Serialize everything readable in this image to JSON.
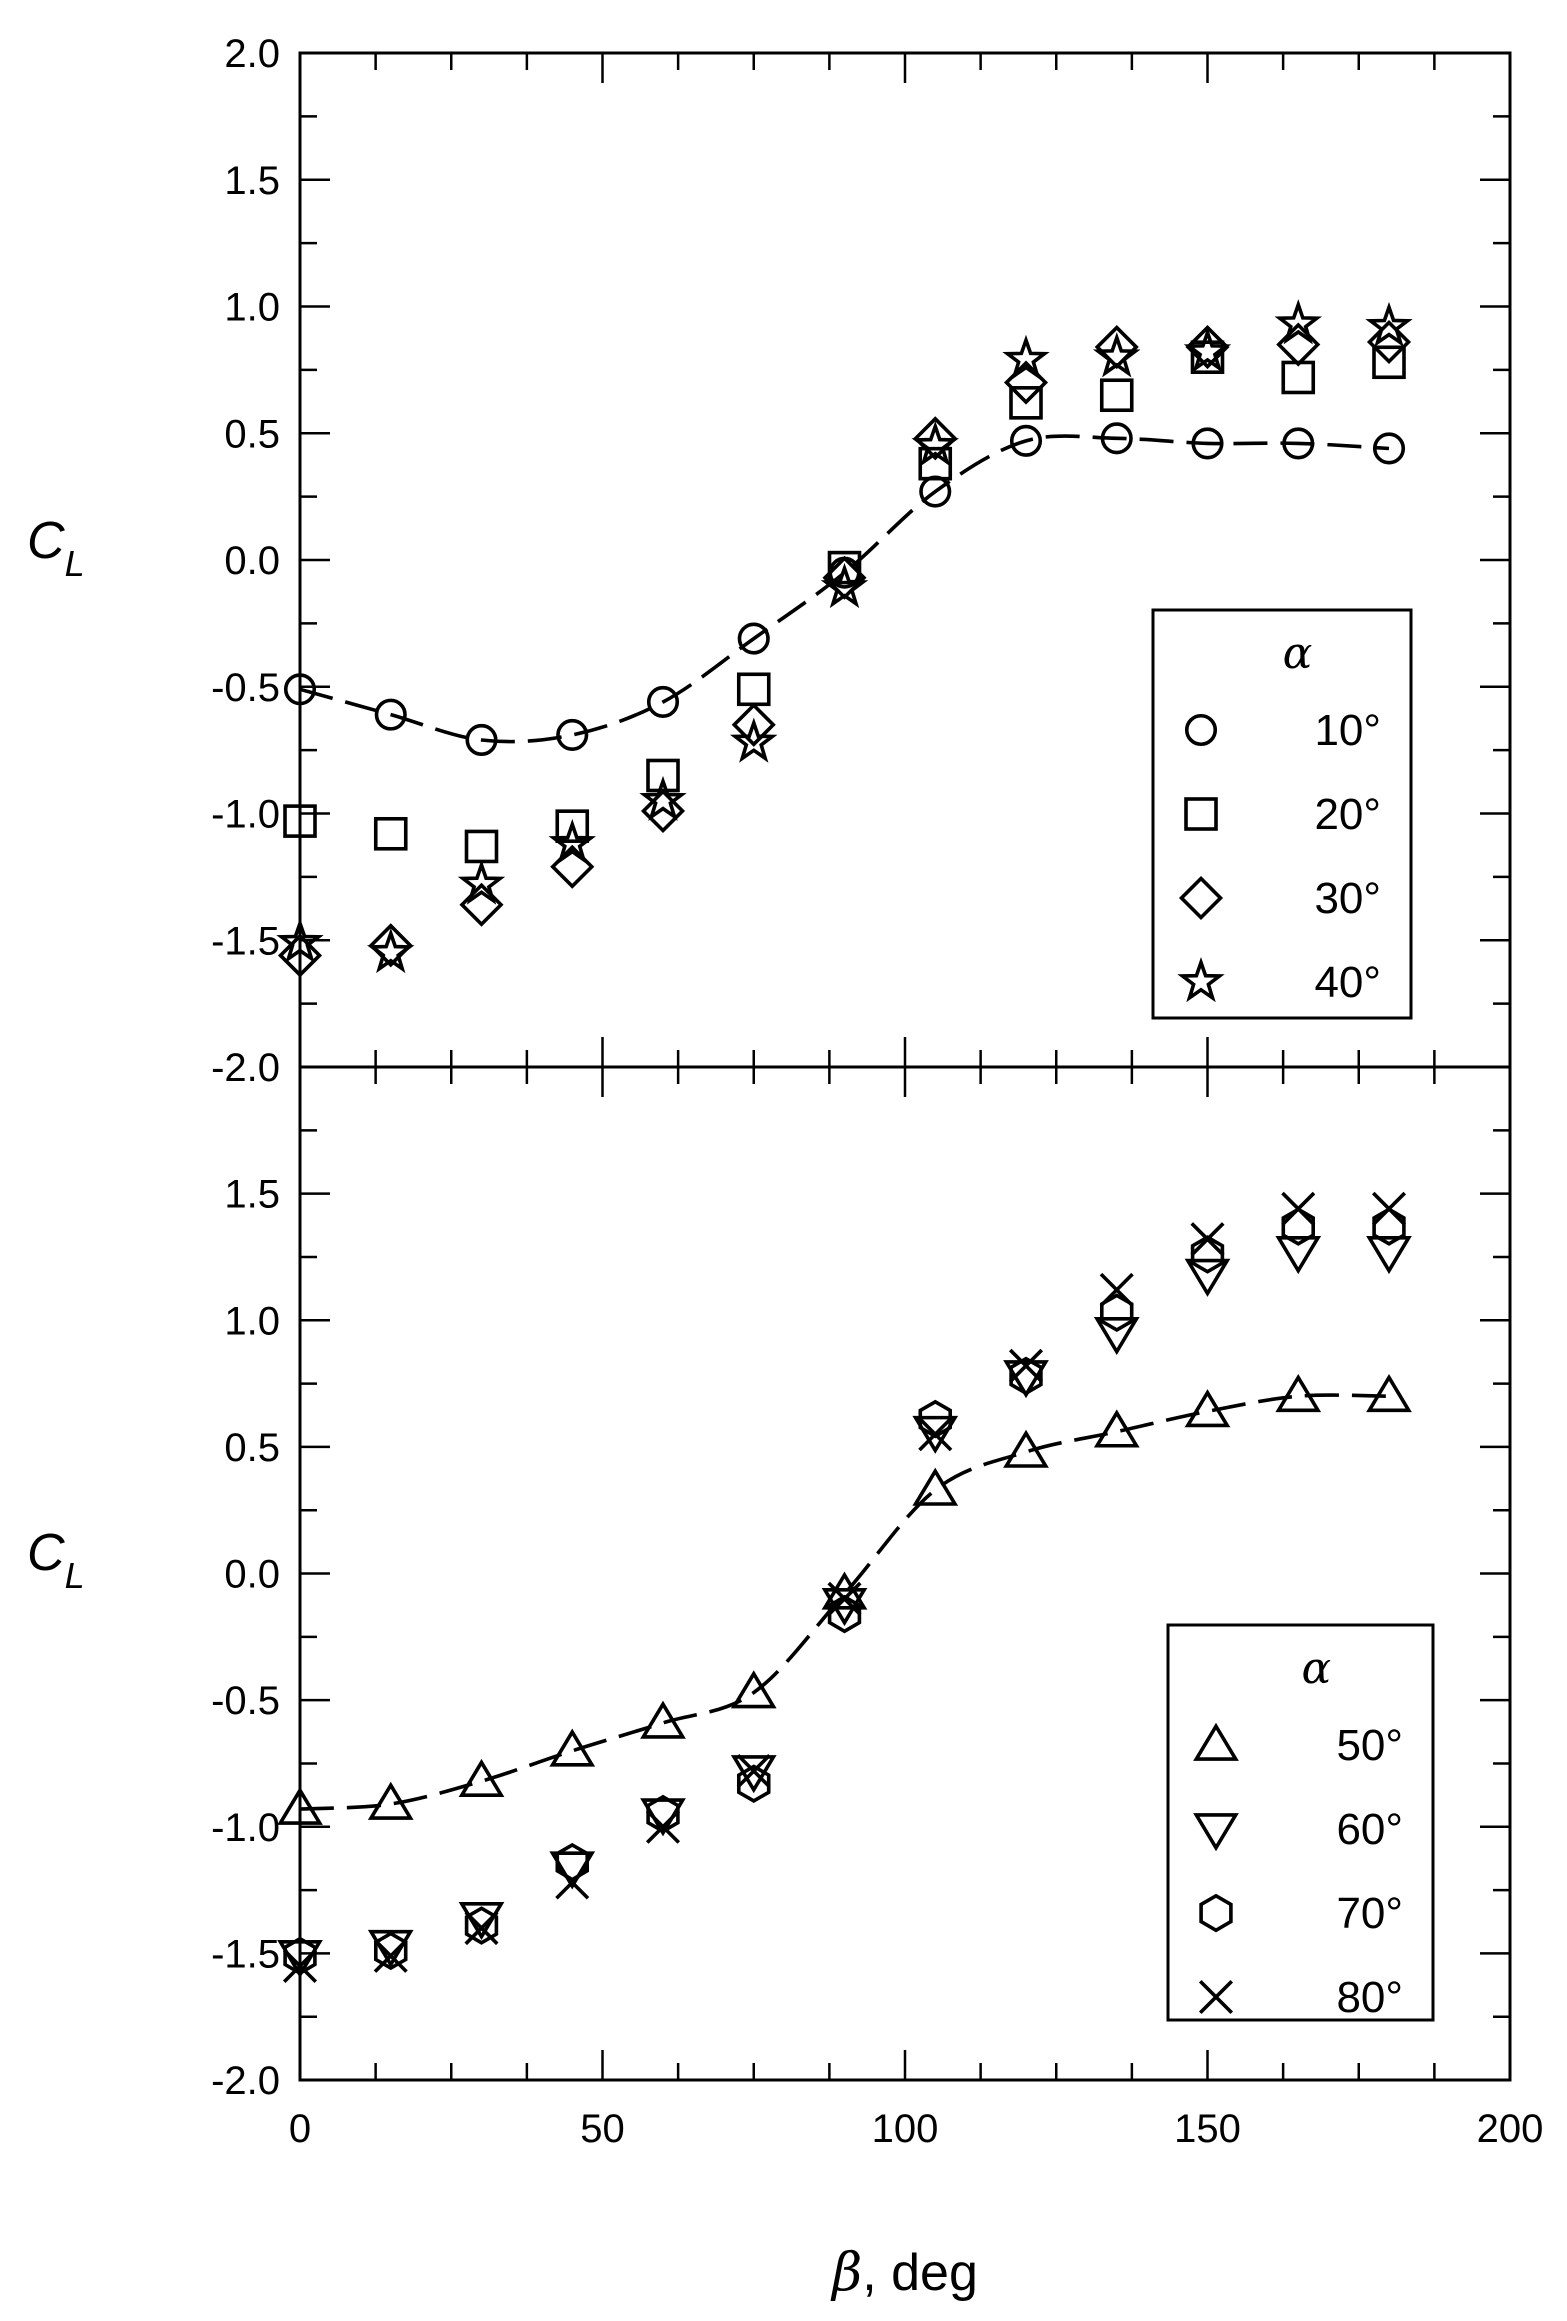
{
  "chart_data": [
    {
      "type": "scatter",
      "panel": "top",
      "xlabel": "β, deg",
      "ylabel": "C_L",
      "ylabel_main": "C",
      "ylabel_sub": "L",
      "xlim": [
        0,
        200
      ],
      "ylim": [
        -2.0,
        2.0
      ],
      "x_ticks": [
        0,
        50,
        100,
        150,
        200
      ],
      "x_tick_labels": [
        "0",
        "50",
        "100",
        "150",
        "200"
      ],
      "y_ticks": [
        -2.0,
        -1.5,
        -1.0,
        -0.5,
        0.0,
        0.5,
        1.0,
        1.5,
        2.0
      ],
      "y_tick_labels": [
        "-2.0",
        "-1.5",
        "-1.0",
        "-0.5",
        "0.0",
        "0.5",
        "1.0",
        "1.5",
        "2.0"
      ],
      "grid": false,
      "legend_title": "α",
      "legend_position": "bottom-right",
      "dashed_fit_series": "10°",
      "series": [
        {
          "name": "10°",
          "marker": "circle",
          "x": [
            0,
            15,
            30,
            45,
            60,
            75,
            90,
            105,
            120,
            135,
            150,
            165,
            180
          ],
          "y": [
            -0.51,
            -0.61,
            -0.71,
            -0.69,
            -0.56,
            -0.31,
            -0.05,
            0.27,
            0.47,
            0.48,
            0.46,
            0.46,
            0.44
          ]
        },
        {
          "name": "20°",
          "marker": "square",
          "x": [
            0,
            15,
            30,
            45,
            60,
            75,
            90,
            105,
            120,
            135,
            150,
            165,
            180
          ],
          "y": [
            -1.03,
            -1.08,
            -1.13,
            -1.05,
            -0.85,
            -0.51,
            -0.03,
            0.38,
            0.62,
            0.65,
            0.8,
            0.72,
            0.78
          ]
        },
        {
          "name": "30°",
          "marker": "diamond",
          "x": [
            0,
            15,
            30,
            45,
            60,
            75,
            90,
            105,
            120,
            135,
            150,
            165,
            180
          ],
          "y": [
            -1.56,
            -1.52,
            -1.36,
            -1.21,
            -0.99,
            -0.65,
            -0.07,
            0.48,
            0.7,
            0.84,
            0.84,
            0.85,
            0.86
          ]
        },
        {
          "name": "40°",
          "marker": "star",
          "x": [
            0,
            15,
            30,
            45,
            60,
            75,
            90,
            105,
            120,
            135,
            150,
            165,
            180
          ],
          "y": [
            -1.51,
            -1.55,
            -1.28,
            -1.12,
            -0.95,
            -0.72,
            -0.11,
            0.45,
            0.79,
            0.8,
            0.82,
            0.93,
            0.92
          ]
        }
      ]
    },
    {
      "type": "scatter",
      "panel": "bottom",
      "xlabel": "β, deg",
      "ylabel": "C_L",
      "ylabel_main": "C",
      "ylabel_sub": "L",
      "xlim": [
        0,
        200
      ],
      "ylim": [
        -2.0,
        2.0
      ],
      "x_ticks": [
        0,
        50,
        100,
        150,
        200
      ],
      "x_tick_labels": [
        "0",
        "50",
        "100",
        "150",
        "200"
      ],
      "y_ticks": [
        -2.0,
        -1.5,
        -1.0,
        -0.5,
        0.0,
        0.5,
        1.0,
        1.5
      ],
      "y_tick_labels": [
        "-2.0",
        "-1.5",
        "-1.0",
        "-0.5",
        "0.0",
        "0.5",
        "1.0",
        "1.5"
      ],
      "grid": false,
      "legend_title": "α",
      "legend_position": "bottom-right",
      "dashed_fit_series": "50°",
      "series": [
        {
          "name": "50°",
          "marker": "triangle-up",
          "x": [
            0,
            15,
            30,
            45,
            60,
            75,
            90,
            105,
            120,
            135,
            150,
            165,
            180
          ],
          "y": [
            -0.93,
            -0.91,
            -0.82,
            -0.7,
            -0.59,
            -0.47,
            -0.08,
            0.33,
            0.48,
            0.56,
            0.64,
            0.7,
            0.7
          ]
        },
        {
          "name": "60°",
          "marker": "triangle-down",
          "x": [
            0,
            15,
            30,
            45,
            60,
            75,
            90,
            105,
            120,
            135,
            150,
            165,
            180
          ],
          "y": [
            -1.51,
            -1.47,
            -1.36,
            -1.16,
            -0.95,
            -0.78,
            -0.12,
            0.56,
            0.78,
            0.95,
            1.18,
            1.27,
            1.27
          ]
        },
        {
          "name": "70°",
          "marker": "hexagon",
          "x": [
            0,
            15,
            30,
            45,
            60,
            75,
            90,
            105,
            120,
            135,
            150,
            165,
            180
          ],
          "y": [
            -1.51,
            -1.49,
            -1.39,
            -1.14,
            -0.95,
            -0.83,
            -0.16,
            0.61,
            0.78,
            1.03,
            1.26,
            1.37,
            1.37
          ]
        },
        {
          "name": "80°",
          "marker": "x",
          "x": [
            0,
            15,
            30,
            45,
            60,
            75,
            90,
            105,
            120,
            135,
            150,
            165,
            180
          ],
          "y": [
            -1.55,
            -1.51,
            -1.4,
            -1.22,
            -1.0,
            -0.78,
            -0.1,
            0.55,
            0.82,
            1.12,
            1.32,
            1.44,
            1.44
          ]
        }
      ]
    }
  ]
}
